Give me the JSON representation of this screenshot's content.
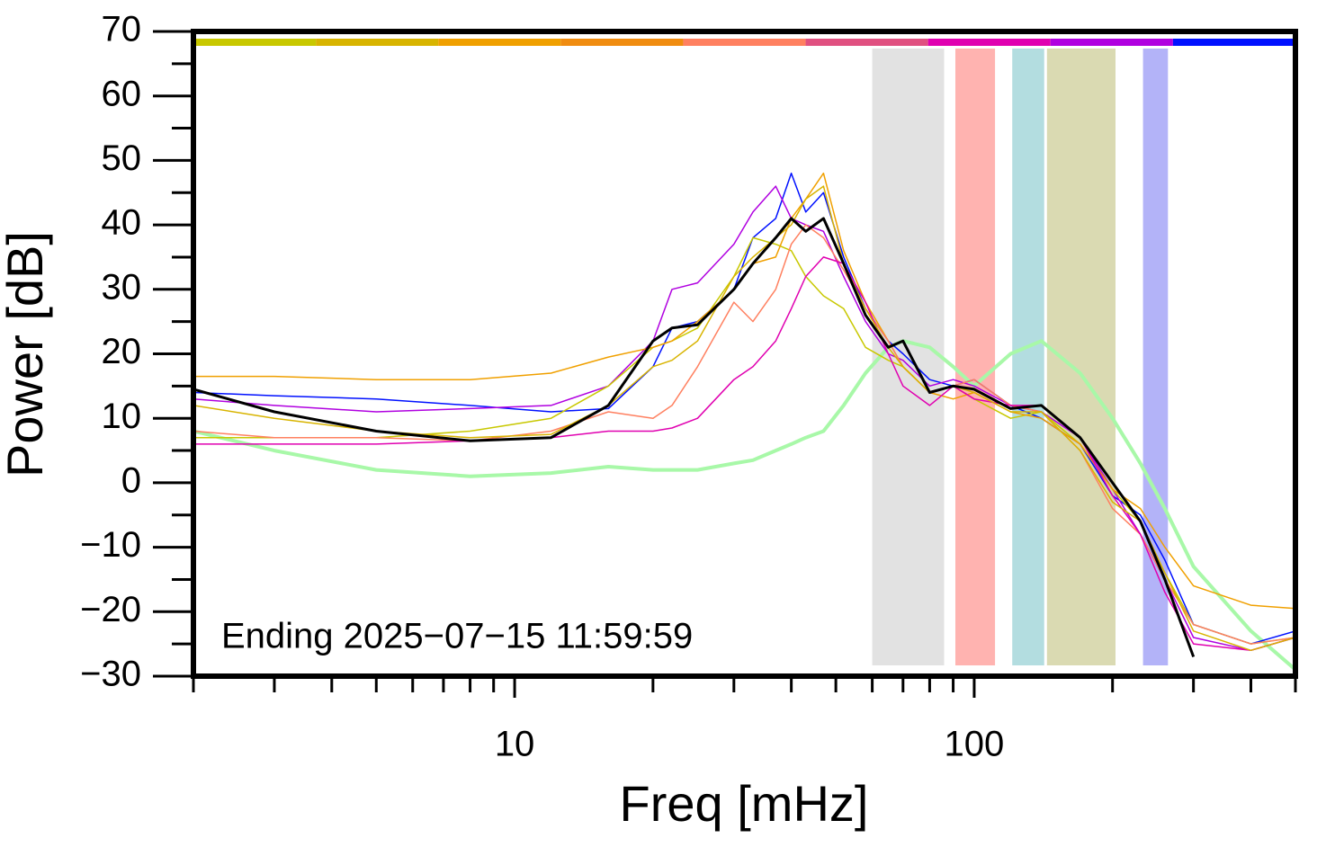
{
  "chart_data": {
    "type": "line",
    "xscale": "log",
    "x_label": "Freq [mHz]",
    "y_label": "Power [dB]",
    "annotation": "Ending 2025−07−15 11:59:59",
    "xlim": [
      2,
      500
    ],
    "ylim": [
      -30,
      70
    ],
    "xticks": [
      10,
      100
    ],
    "xminorticks": [
      2,
      3,
      4,
      5,
      6,
      7,
      8,
      9,
      20,
      30,
      40,
      50,
      60,
      70,
      80,
      90,
      200,
      300,
      400,
      500
    ],
    "yticks": [
      {
        "value": -30,
        "label": "−30"
      },
      {
        "value": -20,
        "label": "−20"
      },
      {
        "value": -10,
        "label": "−10"
      },
      0,
      10,
      20,
      30,
      40,
      50,
      60,
      70
    ],
    "yminorticks": [
      -25,
      -15,
      -5,
      5,
      15,
      25,
      35,
      45,
      55,
      65
    ],
    "strip_colors": [
      "#c8c800",
      "#d8b400",
      "#f0a000",
      "#f08c10",
      "#ff8060",
      "#e05080",
      "#e000b0",
      "#b000e0",
      "#0010ff"
    ],
    "bands": [
      {
        "x0": 60,
        "x1": 86,
        "color": "#e2e2e2"
      },
      {
        "x0": 91,
        "x1": 111,
        "color": "#ffb3b0"
      },
      {
        "x0": 121,
        "x1": 142,
        "color": "#b3dde0"
      },
      {
        "x0": 144,
        "x1": 203,
        "color": "#dadab2"
      },
      {
        "x0": 233,
        "x1": 264,
        "color": "#b3b3f8"
      }
    ],
    "x": [
      2,
      3,
      5,
      8,
      12,
      16,
      20,
      22,
      25,
      30,
      33,
      37,
      40,
      43,
      47,
      52,
      58,
      65,
      70,
      80,
      90,
      100,
      120,
      140,
      170,
      200,
      230,
      260,
      300,
      400,
      500
    ],
    "series": [
      {
        "color": "#a8f8a8",
        "width": 4,
        "values": [
          8,
          5,
          2,
          1,
          1.5,
          2.5,
          2,
          2,
          2,
          3,
          3.5,
          5,
          6,
          7,
          8,
          12,
          17,
          21,
          22,
          21,
          18,
          15,
          20,
          22,
          17,
          10,
          3,
          -4,
          -13,
          -23,
          -29
        ]
      },
      {
        "color": "#0010ff",
        "width": 1.5,
        "values": [
          14,
          13.5,
          13,
          12,
          11,
          11.5,
          18,
          24,
          25,
          30,
          38,
          41,
          48,
          42,
          45,
          35,
          27,
          22,
          20,
          16,
          15,
          16,
          12,
          10,
          6,
          -2,
          -5,
          -12,
          -22,
          -25,
          -23
        ]
      },
      {
        "color": "#b000e0",
        "width": 1.5,
        "values": [
          13,
          12,
          11,
          11.5,
          12,
          15,
          22,
          30,
          31,
          37,
          42,
          46,
          41,
          40,
          39,
          32,
          25,
          20,
          19,
          15,
          16,
          15,
          12,
          11,
          7,
          -1,
          -8,
          -15,
          -24,
          -26,
          -24
        ]
      },
      {
        "color": "#c8c800",
        "width": 1.5,
        "values": [
          7,
          7,
          7,
          8,
          10,
          15,
          21,
          22,
          24,
          32,
          38,
          37,
          36,
          32,
          29,
          27,
          21,
          19,
          18,
          14,
          15,
          13,
          10,
          11,
          6,
          -1,
          -6,
          -14,
          -22,
          -25,
          -24
        ]
      },
      {
        "color": "#f0a000",
        "width": 1.5,
        "values": [
          16.5,
          16.5,
          16,
          16,
          17,
          19.5,
          21,
          22,
          25,
          30,
          34,
          35,
          41,
          44,
          48,
          36,
          28,
          22,
          18,
          14,
          13,
          14,
          11,
          10,
          6,
          -1,
          -4,
          -10,
          -16,
          -19,
          -19.5
        ]
      },
      {
        "color": "#ff8060",
        "width": 1.5,
        "values": [
          8,
          7,
          7,
          6.5,
          8,
          11,
          10,
          12,
          18,
          28,
          25,
          30,
          37,
          40,
          38,
          33,
          27,
          22,
          18,
          14,
          15,
          16,
          12,
          11,
          5,
          -4,
          -8,
          -15,
          -22,
          -25,
          -24
        ]
      },
      {
        "color": "#e000b0",
        "width": 1.5,
        "values": [
          6,
          6,
          6,
          6.5,
          7,
          8,
          8,
          8.5,
          10,
          16,
          18,
          22,
          27,
          32,
          35,
          34,
          28,
          20,
          15,
          12,
          15,
          13,
          12,
          12,
          7,
          -2,
          -8,
          -17,
          -25,
          -26,
          -24
        ]
      },
      {
        "color": "#d8b400",
        "width": 1.5,
        "values": [
          12,
          10,
          8,
          7,
          7.5,
          12,
          18,
          19,
          22,
          32,
          35,
          38,
          40,
          44,
          46,
          34,
          27,
          21,
          18,
          14,
          15,
          14,
          11,
          11,
          5,
          -3,
          -6,
          -14,
          -23,
          -26,
          -24
        ]
      },
      {
        "color": "#000000",
        "width": 3,
        "values": [
          14.5,
          11,
          8,
          6.5,
          7,
          12,
          22,
          24,
          24.5,
          30,
          34,
          38,
          41,
          39,
          41,
          34,
          26,
          21,
          22,
          14,
          15,
          14.5,
          11.5,
          12,
          7,
          0,
          -6,
          -15,
          -27,
          null,
          null
        ]
      }
    ]
  }
}
